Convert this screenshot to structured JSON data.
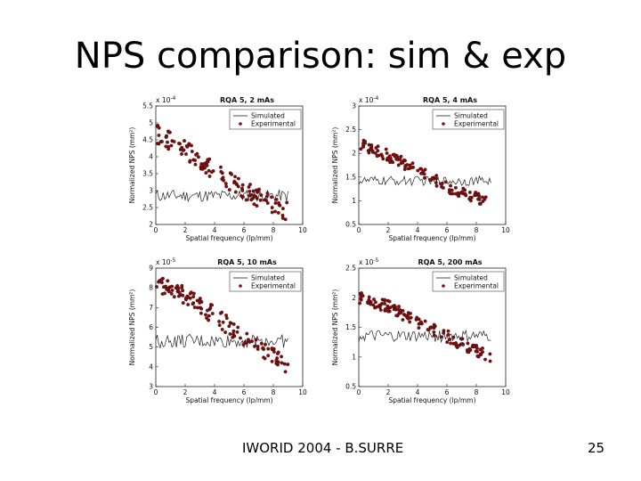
{
  "slide": {
    "title": "NPS comparison: sim & exp",
    "footer_left": "IWORID 2004 - B.SURRE",
    "page_number": "25"
  },
  "colors": {
    "simulated": "#222222",
    "experimental": "#7a1010"
  },
  "chart_data": [
    {
      "type": "line",
      "title": "RQA 5, 2 mAs",
      "xlabel": "Spatial frequency (lp/mm)",
      "ylabel": "Normalized NPS (mm²)",
      "exponent": "x 10",
      "exponent_power": "-4",
      "xlim": [
        0,
        10
      ],
      "ylim": [
        2,
        5.5
      ],
      "xticks": [
        0,
        2,
        4,
        6,
        8,
        10
      ],
      "yticks": [
        2,
        2.5,
        3,
        3.5,
        4,
        4.5,
        5,
        5.5
      ],
      "ytick_labels": [
        "2",
        "2.5",
        "3",
        "3.5",
        "4",
        "4.5",
        "5",
        "5.5"
      ],
      "legend": {
        "position": "top-right",
        "entries": [
          "Simulated",
          "Experimental"
        ]
      },
      "series": [
        {
          "name": "Simulated",
          "style": "line",
          "mean": [
            [
              0,
              2.85
            ],
            [
              9,
              2.85
            ]
          ],
          "noise": 0.18
        },
        {
          "name": "Experimental",
          "style": "points",
          "trend": [
            [
              0,
              4.7
            ],
            [
              2,
              4.2
            ],
            [
              4,
              3.6
            ],
            [
              6,
              3.0
            ],
            [
              8,
              2.6
            ],
            [
              9,
              2.35
            ]
          ],
          "noise": 0.28
        }
      ]
    },
    {
      "type": "line",
      "title": "RQA 5, 4 mAs",
      "xlabel": "Spatial frequency (lp/mm)",
      "ylabel": "Normalized NPS (mm²)",
      "exponent": "x 10",
      "exponent_power": "-4",
      "xlim": [
        0,
        10
      ],
      "ylim": [
        0.5,
        3
      ],
      "xticks": [
        0,
        2,
        4,
        6,
        8,
        10
      ],
      "yticks": [
        0.5,
        1,
        1.5,
        2,
        2.5,
        3
      ],
      "ytick_labels": [
        "0.5",
        "1",
        "1.5",
        "2",
        "2.5",
        "3"
      ],
      "legend": {
        "position": "top-right",
        "entries": [
          "Simulated",
          "Experimental"
        ]
      },
      "series": [
        {
          "name": "Simulated",
          "style": "line",
          "mean": [
            [
              0,
              1.42
            ],
            [
              9,
              1.42
            ]
          ],
          "noise": 0.1
        },
        {
          "name": "Experimental",
          "style": "points",
          "trend": [
            [
              0,
              2.2
            ],
            [
              2,
              1.95
            ],
            [
              4,
              1.65
            ],
            [
              6,
              1.3
            ],
            [
              8,
              1.05
            ],
            [
              9,
              0.95
            ]
          ],
          "noise": 0.12
        }
      ]
    },
    {
      "type": "line",
      "title": "RQA 5, 10 mAs",
      "xlabel": "Spatial frequency (lp/mm)",
      "ylabel": "Normalized NPS (mm²)",
      "exponent": "x 10",
      "exponent_power": "-5",
      "xlim": [
        0,
        10
      ],
      "ylim": [
        3,
        9
      ],
      "xticks": [
        0,
        2,
        4,
        6,
        8,
        10
      ],
      "yticks": [
        3,
        4,
        5,
        6,
        7,
        8,
        9
      ],
      "ytick_labels": [
        "3",
        "4",
        "5",
        "6",
        "7",
        "8",
        "9"
      ],
      "legend": {
        "position": "top-right",
        "entries": [
          "Simulated",
          "Experimental"
        ]
      },
      "series": [
        {
          "name": "Simulated",
          "style": "line",
          "mean": [
            [
              0,
              5.3
            ],
            [
              9,
              5.3
            ]
          ],
          "noise": 0.35
        },
        {
          "name": "Experimental",
          "style": "points",
          "trend": [
            [
              0,
              8.2
            ],
            [
              2,
              7.6
            ],
            [
              4,
              6.6
            ],
            [
              6,
              5.5
            ],
            [
              8,
              4.5
            ],
            [
              9,
              4.1
            ]
          ],
          "noise": 0.45
        }
      ]
    },
    {
      "type": "line",
      "title": "RQA 5, 200 mAs",
      "xlabel": "Spatial frequency (lp/mm)",
      "ylabel": "Normalized NPS (mm²)",
      "exponent": "x 10",
      "exponent_power": "-5",
      "xlim": [
        0,
        10
      ],
      "ylim": [
        0.5,
        2.5
      ],
      "xticks": [
        0,
        2,
        4,
        6,
        8,
        10
      ],
      "yticks": [
        0.5,
        1,
        1.5,
        2,
        2.5
      ],
      "ytick_labels": [
        "0.5",
        "1",
        "1.5",
        "2",
        "2.5"
      ],
      "legend": {
        "position": "top-right",
        "entries": [
          "Simulated",
          "Experimental"
        ]
      },
      "series": [
        {
          "name": "Simulated",
          "style": "line",
          "mean": [
            [
              0,
              1.35
            ],
            [
              9,
              1.35
            ]
          ],
          "noise": 0.1
        },
        {
          "name": "Experimental",
          "style": "points",
          "trend": [
            [
              0,
              2.0
            ],
            [
              2,
              1.85
            ],
            [
              4,
              1.6
            ],
            [
              6,
              1.35
            ],
            [
              8,
              1.1
            ],
            [
              9,
              1.0
            ]
          ],
          "noise": 0.1
        }
      ]
    }
  ]
}
